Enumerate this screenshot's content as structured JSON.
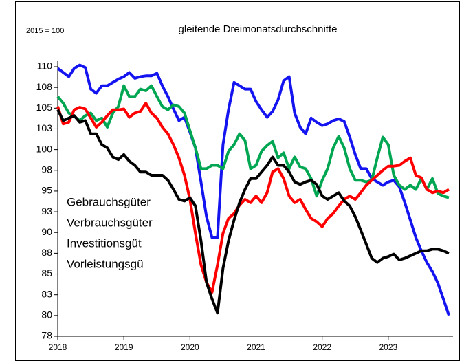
{
  "chart_data": {
    "type": "line",
    "title": "gleitende Dreimonatsdurchschnitte",
    "subtitle": "2015 = 100",
    "x": [
      2018,
      2018.083,
      2018.167,
      2018.25,
      2018.333,
      2018.417,
      2018.5,
      2018.583,
      2018.667,
      2018.75,
      2018.833,
      2018.917,
      2019,
      2019.083,
      2019.167,
      2019.25,
      2019.333,
      2019.417,
      2019.5,
      2019.583,
      2019.667,
      2019.75,
      2019.833,
      2019.917,
      2020,
      2020.083,
      2020.167,
      2020.25,
      2020.333,
      2020.417,
      2020.5,
      2020.583,
      2020.667,
      2020.75,
      2020.833,
      2020.917,
      2021,
      2021.083,
      2021.167,
      2021.25,
      2021.333,
      2021.417,
      2021.5,
      2021.583,
      2021.667,
      2021.75,
      2021.833,
      2021.917,
      2022,
      2022.083,
      2022.167,
      2022.25,
      2022.333,
      2022.417,
      2022.5,
      2022.583,
      2022.667,
      2022.75,
      2022.833,
      2022.917,
      2023,
      2023.083,
      2023.167,
      2023.25,
      2023.333,
      2023.417,
      2023.5,
      2023.583,
      2023.667,
      2023.75,
      2023.833,
      2023.917
    ],
    "series": [
      {
        "name": "Gebrauchsgüter",
        "color": "#1414f0",
        "values": [
          109.8,
          109.3,
          108.8,
          109.8,
          110.2,
          109.9,
          107.3,
          106.8,
          107.7,
          107.7,
          108.1,
          108.5,
          108.8,
          109.3,
          108.6,
          108.8,
          108.9,
          108.9,
          109.2,
          107.7,
          106.4,
          104.9,
          103.5,
          103.9,
          102.1,
          100.2,
          96.1,
          91.9,
          89.4,
          89.4,
          100.6,
          104.8,
          108.1,
          107.7,
          107.3,
          107.3,
          105.8,
          104.8,
          103.9,
          104.6,
          106.0,
          108.3,
          108.8,
          104.4,
          102.7,
          101.9,
          103.8,
          103.3,
          102.9,
          103.1,
          103.5,
          103.7,
          103.4,
          101.5,
          99.4,
          97.7,
          97.7,
          96.5,
          96.1,
          95.7,
          96.1,
          96.3,
          95.5,
          93.6,
          91.5,
          89.4,
          87.8,
          86.4,
          85.3,
          83.9,
          82.0,
          80.0
        ]
      },
      {
        "name": "Verbrauchsgüter",
        "color": "#00a651",
        "values": [
          106.4,
          105.6,
          104.4,
          104.0,
          103.5,
          104.1,
          104.4,
          103.5,
          103.8,
          102.7,
          104.4,
          105.2,
          107.7,
          106.4,
          106.4,
          107.3,
          107.1,
          107.7,
          106.4,
          105.2,
          104.8,
          105.4,
          105.2,
          104.4,
          102.3,
          100.2,
          97.7,
          97.7,
          98.1,
          98.1,
          97.7,
          99.8,
          100.6,
          101.9,
          101.1,
          97.7,
          98.1,
          99.8,
          100.5,
          101.0,
          99.0,
          99.6,
          97.7,
          99.1,
          97.9,
          97.7,
          96.5,
          94.4,
          96.3,
          97.7,
          100.2,
          101.6,
          100.2,
          97.7,
          96.3,
          96.3,
          96.1,
          96.3,
          99.0,
          101.5,
          100.6,
          96.9,
          95.7,
          95.2,
          95.7,
          95.2,
          96.5,
          95.2,
          96.5,
          94.7,
          94.4,
          94.2
        ]
      },
      {
        "name": "Investitionsgüt",
        "color": "#ff0000",
        "values": [
          105.2,
          103.1,
          103.3,
          104.8,
          105.1,
          104.9,
          103.8,
          102.7,
          103.3,
          104.1,
          104.8,
          104.8,
          104.9,
          103.9,
          104.4,
          104.6,
          105.6,
          104.4,
          103.8,
          102.7,
          101.9,
          100.6,
          99.0,
          96.9,
          94.0,
          89.9,
          86.1,
          84.0,
          82.8,
          86.1,
          89.9,
          91.7,
          92.3,
          93.3,
          94.0,
          93.6,
          94.4,
          93.6,
          94.8,
          97.3,
          97.7,
          96.5,
          94.4,
          93.6,
          94.0,
          92.8,
          91.7,
          91.3,
          90.7,
          91.7,
          92.3,
          93.2,
          94.0,
          94.4,
          94.0,
          94.8,
          95.7,
          96.3,
          96.9,
          97.5,
          98.0,
          98.0,
          98.1,
          98.6,
          99.0,
          96.9,
          96.6,
          95.2,
          94.8,
          95.0,
          94.8,
          95.2
        ]
      },
      {
        "name": "Vorleistungsgü",
        "color": "#000000",
        "values": [
          104.8,
          103.5,
          103.8,
          104.1,
          103.3,
          103.5,
          101.9,
          101.9,
          100.6,
          100.2,
          99.1,
          98.8,
          99.4,
          98.6,
          98.1,
          97.3,
          97.3,
          96.9,
          96.9,
          96.9,
          96.3,
          95.2,
          94.0,
          93.8,
          94.2,
          93.2,
          89.0,
          84.0,
          82.0,
          80.3,
          85.7,
          89.0,
          91.5,
          93.6,
          95.2,
          96.5,
          96.5,
          97.3,
          98.1,
          99.1,
          98.1,
          98.1,
          97.3,
          96.1,
          95.8,
          96.1,
          96.3,
          95.8,
          94.4,
          94.0,
          94.4,
          94.8,
          93.8,
          93.2,
          91.9,
          90.3,
          88.6,
          86.9,
          86.4,
          86.9,
          87.1,
          87.4,
          86.7,
          86.9,
          87.2,
          87.5,
          87.8,
          87.8,
          88.0,
          88.0,
          87.8,
          87.5
        ]
      }
    ],
    "xlim": [
      2018,
      2024
    ],
    "xticks": [
      2018,
      2019,
      2020,
      2021,
      2022,
      2023
    ],
    "ylim": [
      77.5,
      110
    ],
    "yticks": [
      {
        "value": 77.5,
        "label": "78"
      },
      80,
      {
        "value": 82.5,
        "label": "83"
      },
      85,
      {
        "value": 87.5,
        "label": "88"
      },
      90,
      {
        "value": 92.5,
        "label": "93"
      },
      95,
      {
        "value": 97.5,
        "label": "98"
      },
      100,
      {
        "value": 102.5,
        "label": "103"
      },
      105,
      {
        "value": 107.5,
        "label": "108"
      },
      110
    ],
    "grid": false,
    "legend": "lower-left"
  }
}
